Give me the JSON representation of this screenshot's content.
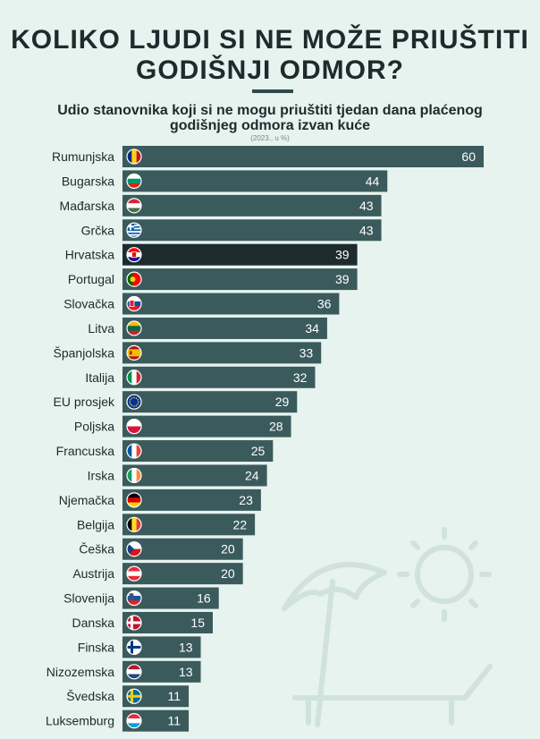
{
  "header": {
    "title_line1": "KOLIKO LJUDI SI NE MOŽE PRIUŠTITI",
    "title_line2": "GODIŠNJI ODMOR?"
  },
  "subtitle": {
    "line1": "Udio stanovnika koji si ne mogu priuštiti tjedan dana plaćenog",
    "line2": "godišnjeg odmora izvan kuće",
    "note": "(2023., u %)"
  },
  "colors": {
    "background": "#e6f3ee",
    "bar": "#3b5a5c",
    "highlight_bar": "#1e2b2e",
    "decor": "#cfe3dc"
  },
  "chart_data": {
    "type": "bar",
    "orientation": "horizontal",
    "xlim": [
      0,
      60
    ],
    "highlight": "Hrvatska",
    "categories": [
      "Rumunjska",
      "Bugarska",
      "Mađarska",
      "Grčka",
      "Hrvatska",
      "Portugal",
      "Slovačka",
      "Litva",
      "Španjolska",
      "Italija",
      "EU prosjek",
      "Poljska",
      "Francuska",
      "Irska",
      "Njemačka",
      "Belgija",
      "Češka",
      "Austrija",
      "Slovenija",
      "Danska",
      "Finska",
      "Nizozemska",
      "Švedska",
      "Luksemburg"
    ],
    "values": [
      60,
      44,
      43,
      43,
      39,
      39,
      36,
      34,
      33,
      32,
      29,
      28,
      25,
      24,
      23,
      22,
      20,
      20,
      16,
      15,
      13,
      13,
      11,
      11
    ],
    "flags": [
      "romania-flag-icon",
      "bulgaria-flag-icon",
      "hungary-flag-icon",
      "greece-flag-icon",
      "croatia-flag-icon",
      "portugal-flag-icon",
      "slovakia-flag-icon",
      "lithuania-flag-icon",
      "spain-flag-icon",
      "italy-flag-icon",
      "eu-flag-icon",
      "poland-flag-icon",
      "france-flag-icon",
      "ireland-flag-icon",
      "germany-flag-icon",
      "belgium-flag-icon",
      "czechia-flag-icon",
      "austria-flag-icon",
      "slovenia-flag-icon",
      "denmark-flag-icon",
      "finland-flag-icon",
      "netherlands-flag-icon",
      "sweden-flag-icon",
      "luxembourg-flag-icon"
    ]
  }
}
